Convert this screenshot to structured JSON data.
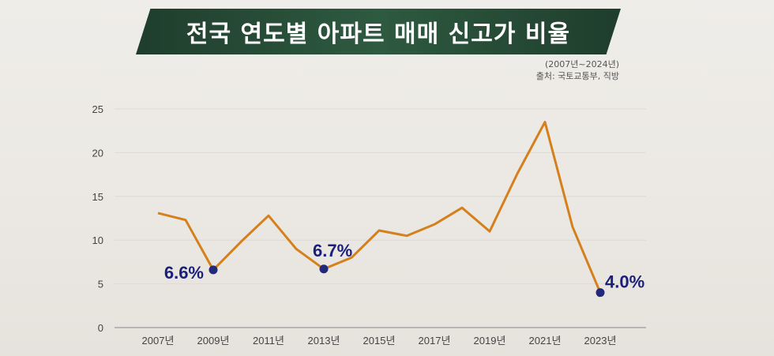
{
  "header": {
    "title": "전국 연도별 아파트 매매 신고가 비율",
    "period": "(2007년~2024년)",
    "source": "출처: 국토교통부, 직방"
  },
  "chart_data": {
    "type": "line",
    "title": "전국 연도별 아파트 매매 신고가 비율",
    "x": [
      2007,
      2008,
      2009,
      2010,
      2011,
      2012,
      2013,
      2014,
      2015,
      2016,
      2017,
      2018,
      2019,
      2020,
      2021,
      2022,
      2023
    ],
    "x_tick_labels": [
      "2007년",
      "2009년",
      "2011년",
      "2013년",
      "2015년",
      "2017년",
      "2019년",
      "2021년",
      "2023년"
    ],
    "y_ticks": [
      0,
      5,
      10,
      15,
      20,
      25
    ],
    "ylim": [
      0,
      25
    ],
    "series": [
      {
        "values": [
          13.1,
          12.3,
          6.6,
          9.8,
          12.8,
          9.0,
          6.7,
          8.0,
          11.1,
          10.5,
          11.8,
          13.7,
          11.0,
          17.6,
          23.5,
          11.5,
          4.0
        ]
      }
    ],
    "annotations": [
      {
        "x": 2009,
        "label": "6.6%"
      },
      {
        "x": 2013,
        "label": "6.7%"
      },
      {
        "x": 2023,
        "label": "4.0%"
      }
    ],
    "line_color": "#d4801c",
    "marker_color": "#22287a",
    "grid": true
  }
}
